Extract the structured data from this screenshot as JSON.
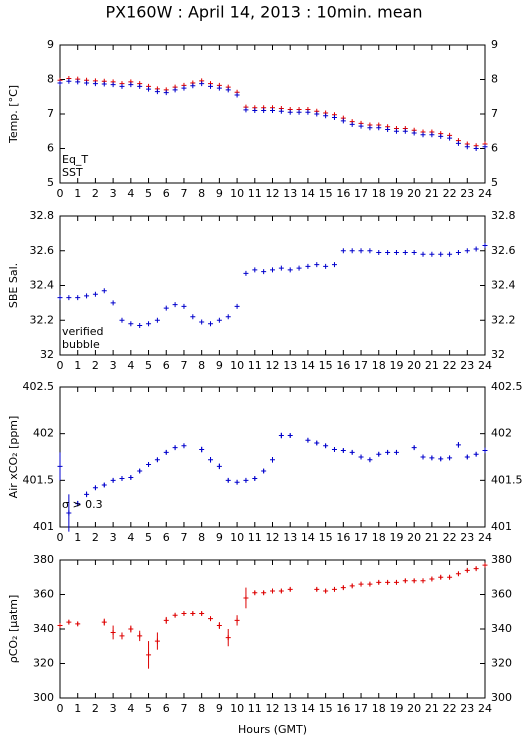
{
  "chart_data": [
    {
      "type": "scatter",
      "title": "PX160W : April 14, 2013 : 10min. mean",
      "ylabel": "Temp. [°C]",
      "x": [
        0,
        0.5,
        1,
        1.5,
        2,
        2.5,
        3,
        3.5,
        4,
        4.5,
        5,
        5.5,
        6,
        6.5,
        7,
        7.5,
        8,
        8.5,
        9,
        9.5,
        10,
        10.5,
        11,
        11.5,
        12,
        12.5,
        13,
        13.5,
        14,
        14.5,
        15,
        15.5,
        16,
        16.5,
        17,
        17.5,
        18,
        18.5,
        19,
        19.5,
        20,
        20.5,
        21,
        21.5,
        22,
        22.5,
        23,
        23.5,
        24
      ],
      "series": [
        {
          "name": "Eq_T",
          "color": "#dd0000",
          "values": [
            7.98,
            8.03,
            8.01,
            7.98,
            7.96,
            7.95,
            7.93,
            7.88,
            7.93,
            7.88,
            7.8,
            7.73,
            7.7,
            7.78,
            7.83,
            7.9,
            7.96,
            7.88,
            7.83,
            7.78,
            7.63,
            7.2,
            7.18,
            7.18,
            7.18,
            7.16,
            7.13,
            7.13,
            7.13,
            7.08,
            7.03,
            6.98,
            6.88,
            6.78,
            6.73,
            6.68,
            6.68,
            6.63,
            6.58,
            6.58,
            6.53,
            6.48,
            6.48,
            6.43,
            6.38,
            6.23,
            6.13,
            6.08,
            6.13
          ]
        },
        {
          "name": "SST",
          "color": "#0000cc",
          "values": [
            7.9,
            7.95,
            7.93,
            7.9,
            7.88,
            7.87,
            7.85,
            7.8,
            7.85,
            7.8,
            7.72,
            7.65,
            7.62,
            7.7,
            7.75,
            7.82,
            7.88,
            7.8,
            7.75,
            7.7,
            7.55,
            7.12,
            7.1,
            7.1,
            7.1,
            7.08,
            7.05,
            7.05,
            7.05,
            7.0,
            6.95,
            6.9,
            6.8,
            6.7,
            6.65,
            6.6,
            6.6,
            6.55,
            6.5,
            6.5,
            6.45,
            6.4,
            6.4,
            6.35,
            6.3,
            6.15,
            6.05,
            6.0,
            6.05
          ]
        }
      ],
      "xlim": [
        0,
        24
      ],
      "xticks": [
        0,
        1,
        2,
        3,
        4,
        5,
        6,
        7,
        8,
        9,
        10,
        11,
        12,
        13,
        14,
        15,
        16,
        17,
        18,
        19,
        20,
        21,
        22,
        23,
        24
      ],
      "ylim": [
        5,
        9
      ],
      "yticks": [
        5,
        6,
        7,
        8,
        9
      ]
    },
    {
      "type": "scatter",
      "ylabel": "SBE Sal.",
      "x": [
        0,
        0.5,
        1,
        1.5,
        2,
        2.5,
        3,
        3.5,
        4,
        4.5,
        5,
        5.5,
        6,
        6.5,
        7,
        7.5,
        8,
        8.5,
        9,
        9.5,
        10,
        10.5,
        11,
        11.5,
        12,
        12.5,
        13,
        13.5,
        14,
        14.5,
        15,
        15.5,
        16,
        16.5,
        17,
        17.5,
        18,
        18.5,
        19,
        19.5,
        20,
        20.5,
        21,
        21.5,
        22,
        22.5,
        23,
        23.5,
        24
      ],
      "series": [
        {
          "name": "verified",
          "color": "#0000cc",
          "values": [
            32.33,
            32.33,
            32.33,
            32.34,
            32.35,
            32.37,
            32.3,
            32.2,
            32.18,
            32.17,
            32.18,
            32.2,
            32.27,
            32.29,
            32.28,
            32.22,
            32.19,
            32.18,
            32.2,
            32.22,
            32.28,
            32.47,
            32.49,
            32.48,
            32.49,
            32.5,
            32.49,
            32.5,
            32.51,
            32.52,
            32.51,
            32.52,
            32.6,
            32.6,
            32.6,
            32.6,
            32.59,
            32.59,
            32.59,
            32.59,
            32.59,
            32.58,
            32.58,
            32.58,
            32.58,
            32.59,
            32.6,
            32.61,
            32.63
          ]
        },
        {
          "name": "bubble",
          "color": "#cc00cc",
          "values": [
            null,
            null,
            null,
            null,
            null,
            null,
            null,
            null,
            null,
            null,
            null,
            null,
            null,
            null,
            null,
            null,
            null,
            null,
            null,
            null,
            null,
            null,
            null,
            null,
            null,
            null,
            null,
            null,
            null,
            null,
            null,
            null,
            null,
            null,
            null,
            null,
            null,
            null,
            null,
            null,
            null,
            null,
            null,
            null,
            null,
            null,
            null,
            null,
            null
          ]
        }
      ],
      "xlim": [
        0,
        24
      ],
      "xticks": [
        0,
        1,
        2,
        3,
        4,
        5,
        6,
        7,
        8,
        9,
        10,
        11,
        12,
        13,
        14,
        15,
        16,
        17,
        18,
        19,
        20,
        21,
        22,
        23,
        24
      ],
      "ylim": [
        32,
        32.8
      ],
      "yticks": [
        32,
        32.2,
        32.4,
        32.6,
        32.8
      ]
    },
    {
      "type": "errorbar",
      "ylabel": "Air xCO₂ [ppm]",
      "annotation": "σ > 0.3",
      "annotation_color": "#cc00cc",
      "x": [
        0,
        0.5,
        1,
        1.5,
        2,
        2.5,
        3,
        3.5,
        4,
        4.5,
        5,
        5.5,
        6,
        6.5,
        7,
        7.5,
        8,
        8.5,
        9,
        9.5,
        10,
        10.5,
        11,
        11.5,
        12,
        12.5,
        13,
        13.5,
        14,
        14.5,
        15,
        15.5,
        16,
        16.5,
        17,
        17.5,
        18,
        18.5,
        19,
        19.5,
        20,
        20.5,
        21,
        21.5,
        22,
        22.5,
        23,
        23.5,
        24
      ],
      "series": [
        {
          "name": "Air xCO₂",
          "color": "#0000cc",
          "values": [
            401.65,
            401.15,
            401.25,
            401.35,
            401.42,
            401.45,
            401.5,
            401.52,
            401.53,
            401.6,
            401.67,
            401.72,
            401.8,
            401.85,
            401.87,
            null,
            401.83,
            401.72,
            401.65,
            401.5,
            401.48,
            401.5,
            401.52,
            401.6,
            401.72,
            401.98,
            401.98,
            null,
            401.93,
            401.9,
            401.87,
            401.83,
            401.82,
            401.8,
            401.75,
            401.72,
            401.78,
            401.8,
            401.8,
            null,
            401.85,
            401.75,
            401.74,
            401.73,
            401.74,
            401.88,
            401.75,
            401.78,
            401.82
          ],
          "errors": [
            0.15,
            0.2,
            0.03,
            0.03,
            0.02,
            0.02,
            0.02,
            0.02,
            0.02,
            0.02,
            0.02,
            0.02,
            0.02,
            0.02,
            0.02,
            null,
            0.03,
            0.03,
            0.03,
            0.02,
            0.02,
            0.02,
            0.02,
            0.02,
            0.03,
            0.03,
            0.02,
            null,
            0.02,
            0.02,
            0.02,
            0.02,
            0.02,
            0.02,
            0.02,
            0.02,
            0.02,
            0.02,
            0.02,
            null,
            0.02,
            0.02,
            0.02,
            0.02,
            0.02,
            0.03,
            0.02,
            0.02,
            0.03
          ]
        }
      ],
      "xlim": [
        0,
        24
      ],
      "xticks": [
        0,
        1,
        2,
        3,
        4,
        5,
        6,
        7,
        8,
        9,
        10,
        11,
        12,
        13,
        14,
        15,
        16,
        17,
        18,
        19,
        20,
        21,
        22,
        23,
        24
      ],
      "ylim": [
        401,
        402.5
      ],
      "yticks": [
        401,
        401.5,
        402,
        402.5
      ]
    },
    {
      "type": "errorbar",
      "ylabel": "ρCO₂ [μatm]",
      "xlabel": "Hours (GMT)",
      "x": [
        0,
        0.5,
        1,
        1.5,
        2,
        2.5,
        3,
        3.5,
        4,
        4.5,
        5,
        5.5,
        6,
        6.5,
        7,
        7.5,
        8,
        8.5,
        9,
        9.5,
        10,
        10.5,
        11,
        11.5,
        12,
        12.5,
        13,
        13.5,
        14,
        14.5,
        15,
        15.5,
        16,
        16.5,
        17,
        17.5,
        18,
        18.5,
        19,
        19.5,
        20,
        20.5,
        21,
        21.5,
        22,
        22.5,
        23,
        23.5,
        24
      ],
      "series": [
        {
          "name": "pCO₂",
          "color": "#dd0000",
          "values": [
            342,
            344,
            343,
            null,
            null,
            344,
            338,
            336,
            340,
            336,
            325,
            333,
            345,
            348,
            349,
            349,
            349,
            346,
            342,
            335,
            345,
            358,
            361,
            361,
            362,
            362,
            363,
            null,
            null,
            363,
            362,
            363,
            364,
            365,
            366,
            366,
            367,
            367,
            367,
            368,
            368,
            368,
            369,
            370,
            370,
            372,
            374,
            375,
            377
          ],
          "errors": [
            1,
            1,
            1,
            null,
            null,
            2,
            4,
            2,
            2,
            3,
            8,
            5,
            2,
            1,
            1,
            1,
            1,
            1,
            2,
            5,
            3,
            6,
            1,
            1,
            1,
            1,
            1,
            null,
            null,
            1,
            1,
            1,
            1,
            1,
            1,
            1,
            1,
            1,
            1,
            1,
            1,
            1,
            1,
            1,
            1,
            1,
            1,
            1,
            1
          ]
        }
      ],
      "xlim": [
        0,
        24
      ],
      "xticks": [
        0,
        1,
        2,
        3,
        4,
        5,
        6,
        7,
        8,
        9,
        10,
        11,
        12,
        13,
        14,
        15,
        16,
        17,
        18,
        19,
        20,
        21,
        22,
        23,
        24
      ],
      "ylim": [
        300,
        380
      ],
      "yticks": [
        300,
        320,
        340,
        360,
        380
      ]
    }
  ]
}
